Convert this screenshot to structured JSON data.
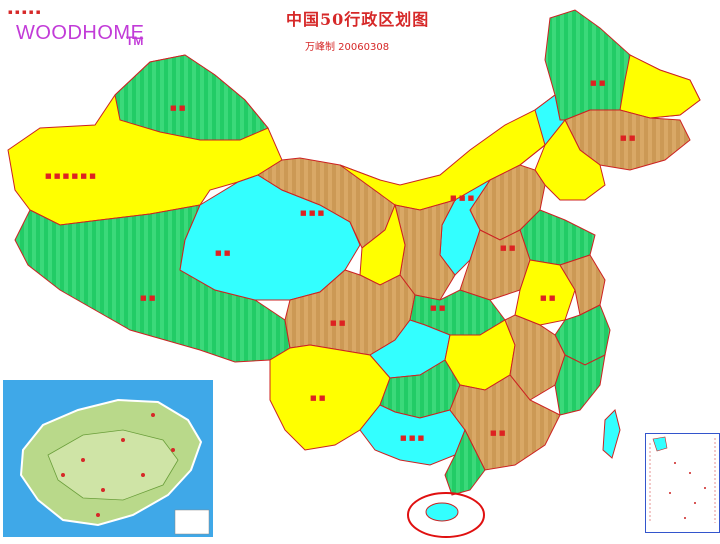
{
  "header": {
    "title": "中国50行政区划图",
    "byline": "万峰制 20060308",
    "logo": "WOODHOME",
    "logo_tm": "TM"
  },
  "colors": {
    "yellow": "#ffff00",
    "green": "#22cc66",
    "cyan": "#33ffff",
    "orange": "#cc9955",
    "border": "#cc2222",
    "label": "#dd2222",
    "circle": "#e01010"
  },
  "insets": {
    "left": "hainan-detail-map",
    "right": "south-china-sea-islands"
  }
}
